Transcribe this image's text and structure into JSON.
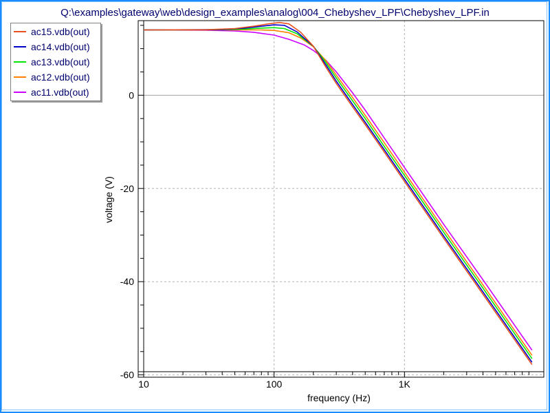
{
  "window": {
    "title": "Q:\\examples\\gateway\\web\\design_examples\\analog\\004_Chebyshev_LPF\\Chebyshev_LPF.in"
  },
  "colors": {
    "frame": "#1a8cff",
    "grid": "#b4b4b4",
    "zero_line": "#a0a0a0",
    "text_dark_blue": "#00006e"
  },
  "chart_data": {
    "type": "line",
    "title": "Q:\\examples\\gateway\\web\\design_examples\\analog\\004_Chebyshev_LPF\\Chebyshev_LPF.in",
    "xlabel": "frequency (Hz)",
    "ylabel": "voltage (V)",
    "x_scale": "log",
    "xlim": [
      10,
      10000
    ],
    "ylim": [
      -60.5,
      16
    ],
    "grid": true,
    "legend_position": "top-left",
    "x_ticks": [
      {
        "value": 10,
        "label": "10"
      },
      {
        "value": 100,
        "label": "100"
      },
      {
        "value": 1000,
        "label": "1K"
      }
    ],
    "y_ticks": [
      {
        "value": 0,
        "label": "0"
      },
      {
        "value": -20,
        "label": "-20"
      },
      {
        "value": -40,
        "label": "-40"
      },
      {
        "value": -60,
        "label": "-60"
      }
    ],
    "series": [
      {
        "name": "ac15.vdb(out)",
        "color": "#e8501e",
        "points": [
          [
            10,
            14.0
          ],
          [
            30,
            14.05
          ],
          [
            50,
            14.3
          ],
          [
            70,
            14.8
          ],
          [
            90,
            15.3
          ],
          [
            110,
            15.6
          ],
          [
            130,
            15.3
          ],
          [
            160,
            13.5
          ],
          [
            200,
            10.5
          ],
          [
            250,
            6.0
          ],
          [
            300,
            2.5
          ],
          [
            400,
            -2.5
          ],
          [
            500,
            -6.3
          ],
          [
            700,
            -12.2
          ],
          [
            1000,
            -18.5
          ],
          [
            2000,
            -30.7
          ],
          [
            4000,
            -42.7
          ],
          [
            8000,
            -54.8
          ],
          [
            9500,
            -57.8
          ]
        ]
      },
      {
        "name": "ac14.vdb(out)",
        "color": "#0000c8",
        "points": [
          [
            10,
            14.0
          ],
          [
            40,
            14.1
          ],
          [
            60,
            14.4
          ],
          [
            80,
            14.8
          ],
          [
            100,
            15.1
          ],
          [
            120,
            15.0
          ],
          [
            150,
            13.6
          ],
          [
            200,
            10.5
          ],
          [
            250,
            6.5
          ],
          [
            300,
            3.0
          ],
          [
            400,
            -2.0
          ],
          [
            500,
            -5.8
          ],
          [
            700,
            -11.7
          ],
          [
            1000,
            -18.0
          ],
          [
            2000,
            -30.2
          ],
          [
            4000,
            -42.2
          ],
          [
            8000,
            -54.3
          ],
          [
            9500,
            -57.3
          ]
        ]
      },
      {
        "name": "ac13.vdb(out)",
        "color": "#00e600",
        "points": [
          [
            10,
            14.0
          ],
          [
            40,
            14.05
          ],
          [
            60,
            14.2
          ],
          [
            80,
            14.4
          ],
          [
            100,
            14.5
          ],
          [
            120,
            14.3
          ],
          [
            150,
            13.2
          ],
          [
            200,
            10.5
          ],
          [
            250,
            7.0
          ],
          [
            300,
            3.7
          ],
          [
            400,
            -1.2
          ],
          [
            500,
            -5.0
          ],
          [
            700,
            -11.0
          ],
          [
            1000,
            -17.2
          ],
          [
            2000,
            -29.4
          ],
          [
            4000,
            -41.4
          ],
          [
            8000,
            -53.5
          ],
          [
            9500,
            -56.5
          ]
        ]
      },
      {
        "name": "ac12.vdb(out)",
        "color": "#ff7f00",
        "points": [
          [
            10,
            14.0
          ],
          [
            40,
            14.0
          ],
          [
            60,
            14.0
          ],
          [
            80,
            14.0
          ],
          [
            100,
            13.9
          ],
          [
            130,
            13.4
          ],
          [
            160,
            12.3
          ],
          [
            200,
            10.4
          ],
          [
            250,
            7.4
          ],
          [
            300,
            4.3
          ],
          [
            400,
            -0.5
          ],
          [
            500,
            -4.3
          ],
          [
            700,
            -10.2
          ],
          [
            1000,
            -16.5
          ],
          [
            2000,
            -28.7
          ],
          [
            4000,
            -40.7
          ],
          [
            8000,
            -52.8
          ],
          [
            9500,
            -55.8
          ]
        ]
      },
      {
        "name": "ac11.vdb(out)",
        "color": "#cc00ff",
        "points": [
          [
            10,
            14.0
          ],
          [
            30,
            13.95
          ],
          [
            50,
            13.8
          ],
          [
            70,
            13.5
          ],
          [
            100,
            12.9
          ],
          [
            130,
            12.0
          ],
          [
            170,
            10.8
          ],
          [
            200,
            9.6
          ],
          [
            250,
            7.5
          ],
          [
            300,
            5.0
          ],
          [
            400,
            0.5
          ],
          [
            500,
            -3.2
          ],
          [
            700,
            -9.2
          ],
          [
            1000,
            -15.5
          ],
          [
            2000,
            -27.7
          ],
          [
            4000,
            -39.6
          ],
          [
            8000,
            -51.7
          ],
          [
            9500,
            -54.7
          ]
        ]
      }
    ]
  }
}
